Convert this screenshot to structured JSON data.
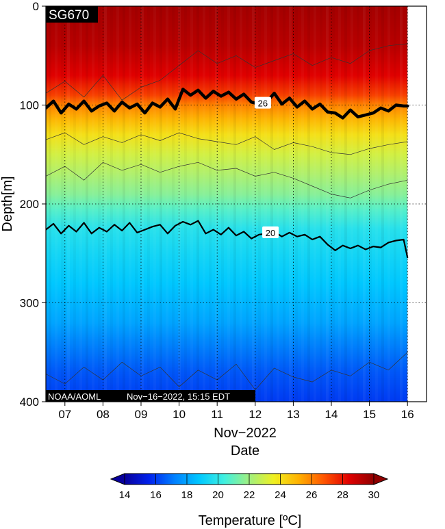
{
  "chart_data": {
    "type": "heatmap",
    "badge": "SG670",
    "footer": {
      "org": "NOAA/AOML",
      "timestamp": "Nov−16−2022, 15:15 EDT"
    },
    "ylabel": "Depth[m]",
    "xlabel_month": "Nov−2022",
    "xlabel": "Date",
    "y_ticks": [
      "0",
      "100",
      "200",
      "300",
      "400"
    ],
    "x_ticks": [
      "07",
      "08",
      "09",
      "10",
      "11",
      "12",
      "13",
      "14",
      "15",
      "16"
    ],
    "y_range": [
      0,
      400
    ],
    "x_range": [
      6.5,
      16.5
    ],
    "data_end_day": 16.0,
    "colorbar": {
      "title": "Temperature [ºC]",
      "ticks": [
        "14",
        "16",
        "18",
        "20",
        "22",
        "24",
        "26",
        "28",
        "30"
      ],
      "range": [
        14,
        30
      ],
      "colors": [
        "#08009c",
        "#0022ee",
        "#0080ff",
        "#00c8ff",
        "#40f0e0",
        "#a0f080",
        "#f0f020",
        "#ffb000",
        "#ff5500",
        "#e00000",
        "#900000"
      ]
    },
    "temperature_profile": {
      "depth": [
        0,
        40,
        70,
        90,
        100,
        115,
        130,
        150,
        170,
        190,
        205,
        225,
        250,
        280,
        320,
        370,
        400
      ],
      "temp": [
        29.6,
        29.2,
        28.4,
        27.2,
        26.0,
        25.0,
        24.0,
        23.0,
        22.3,
        21.6,
        20.8,
        19.8,
        19.3,
        18.8,
        18.0,
        16.5,
        16.0
      ]
    },
    "contours": [
      {
        "label": "26",
        "level": 26,
        "style": "bold",
        "label_day": 12.2,
        "days": [
          6.5,
          6.7,
          6.9,
          7.1,
          7.3,
          7.5,
          7.7,
          7.9,
          8.1,
          8.3,
          8.5,
          8.7,
          8.9,
          9.1,
          9.3,
          9.5,
          9.7,
          9.9,
          10.1,
          10.3,
          10.5,
          10.7,
          10.9,
          11.1,
          11.3,
          11.5,
          11.7,
          11.9,
          12.1,
          12.3,
          12.5,
          12.7,
          12.9,
          13.1,
          13.3,
          13.5,
          13.7,
          13.9,
          14.1,
          14.3,
          14.5,
          14.7,
          14.9,
          15.1,
          15.3,
          15.5,
          15.7,
          15.9,
          16.0
        ],
        "depths": [
          103,
          96,
          108,
          99,
          104,
          96,
          106,
          101,
          98,
          106,
          97,
          103,
          99,
          108,
          98,
          102,
          94,
          104,
          84,
          90,
          85,
          93,
          86,
          91,
          87,
          94,
          89,
          97,
          99,
          97,
          88,
          99,
          93,
          102,
          96,
          104,
          99,
          107,
          108,
          113,
          105,
          112,
          110,
          108,
          103,
          106,
          100,
          101,
          101
        ]
      },
      {
        "label": "20",
        "level": 20,
        "style": "medium",
        "label_day": 12.4,
        "days": [
          6.5,
          6.7,
          6.9,
          7.1,
          7.3,
          7.5,
          7.7,
          7.9,
          8.1,
          8.3,
          8.5,
          8.7,
          8.9,
          9.1,
          9.3,
          9.5,
          9.7,
          9.9,
          10.1,
          10.3,
          10.5,
          10.7,
          10.9,
          11.1,
          11.3,
          11.5,
          11.7,
          11.9,
          12.1,
          12.3,
          12.5,
          12.7,
          12.9,
          13.1,
          13.3,
          13.5,
          13.7,
          13.9,
          14.1,
          14.3,
          14.5,
          14.7,
          14.9,
          15.1,
          15.3,
          15.5,
          15.7,
          15.9,
          16.0
        ],
        "depths": [
          226,
          220,
          230,
          222,
          228,
          219,
          230,
          224,
          228,
          221,
          227,
          219,
          229,
          226,
          223,
          221,
          230,
          222,
          218,
          221,
          217,
          230,
          226,
          231,
          224,
          232,
          228,
          235,
          231,
          230,
          228,
          233,
          229,
          233,
          231,
          236,
          233,
          241,
          247,
          242,
          245,
          242,
          246,
          243,
          244,
          239,
          237,
          236,
          254
        ]
      },
      {
        "level": 28,
        "style": "thin",
        "days": [
          6.5,
          7.0,
          7.5,
          8.0,
          8.5,
          9.0,
          9.5,
          10.0,
          10.5,
          11.0,
          11.5,
          12.0,
          12.5,
          13.0,
          13.5,
          14.0,
          14.5,
          15.0,
          15.5,
          16.0
        ],
        "depths": [
          88,
          76,
          92,
          70,
          95,
          82,
          75,
          60,
          45,
          58,
          50,
          62,
          55,
          48,
          60,
          52,
          58,
          45,
          40,
          38
        ]
      },
      {
        "level": 24,
        "style": "thin",
        "days": [
          6.5,
          7.0,
          7.5,
          8.0,
          8.5,
          9.0,
          9.5,
          10.0,
          10.5,
          11.0,
          11.5,
          12.0,
          12.5,
          13.0,
          13.5,
          14.0,
          14.5,
          15.0,
          15.5,
          16.0
        ],
        "depths": [
          135,
          128,
          140,
          132,
          138,
          130,
          136,
          128,
          134,
          137,
          140,
          132,
          145,
          138,
          142,
          148,
          150,
          144,
          140,
          137
        ]
      },
      {
        "level": 22,
        "style": "thin",
        "days": [
          6.5,
          7.0,
          7.5,
          8.0,
          8.5,
          9.0,
          9.5,
          10.0,
          10.5,
          11.0,
          11.5,
          12.0,
          12.5,
          13.0,
          13.5,
          14.0,
          14.5,
          15.0,
          15.5,
          16.0
        ],
        "depths": [
          172,
          162,
          176,
          158,
          166,
          160,
          168,
          162,
          158,
          166,
          164,
          172,
          168,
          174,
          182,
          190,
          194,
          186,
          180,
          176
        ]
      },
      {
        "level": 16,
        "style": "thin",
        "days": [
          6.5,
          7.0,
          7.5,
          8.0,
          8.5,
          9.0,
          9.5,
          10.0,
          10.5,
          11.0,
          11.5,
          12.0,
          12.5,
          13.0,
          13.5,
          14.0,
          14.5,
          15.0,
          15.5,
          16.0
        ],
        "depths": [
          372,
          382,
          365,
          378,
          360,
          374,
          365,
          385,
          368,
          378,
          362,
          388,
          366,
          375,
          380,
          368,
          374,
          360,
          368,
          350
        ]
      }
    ]
  }
}
